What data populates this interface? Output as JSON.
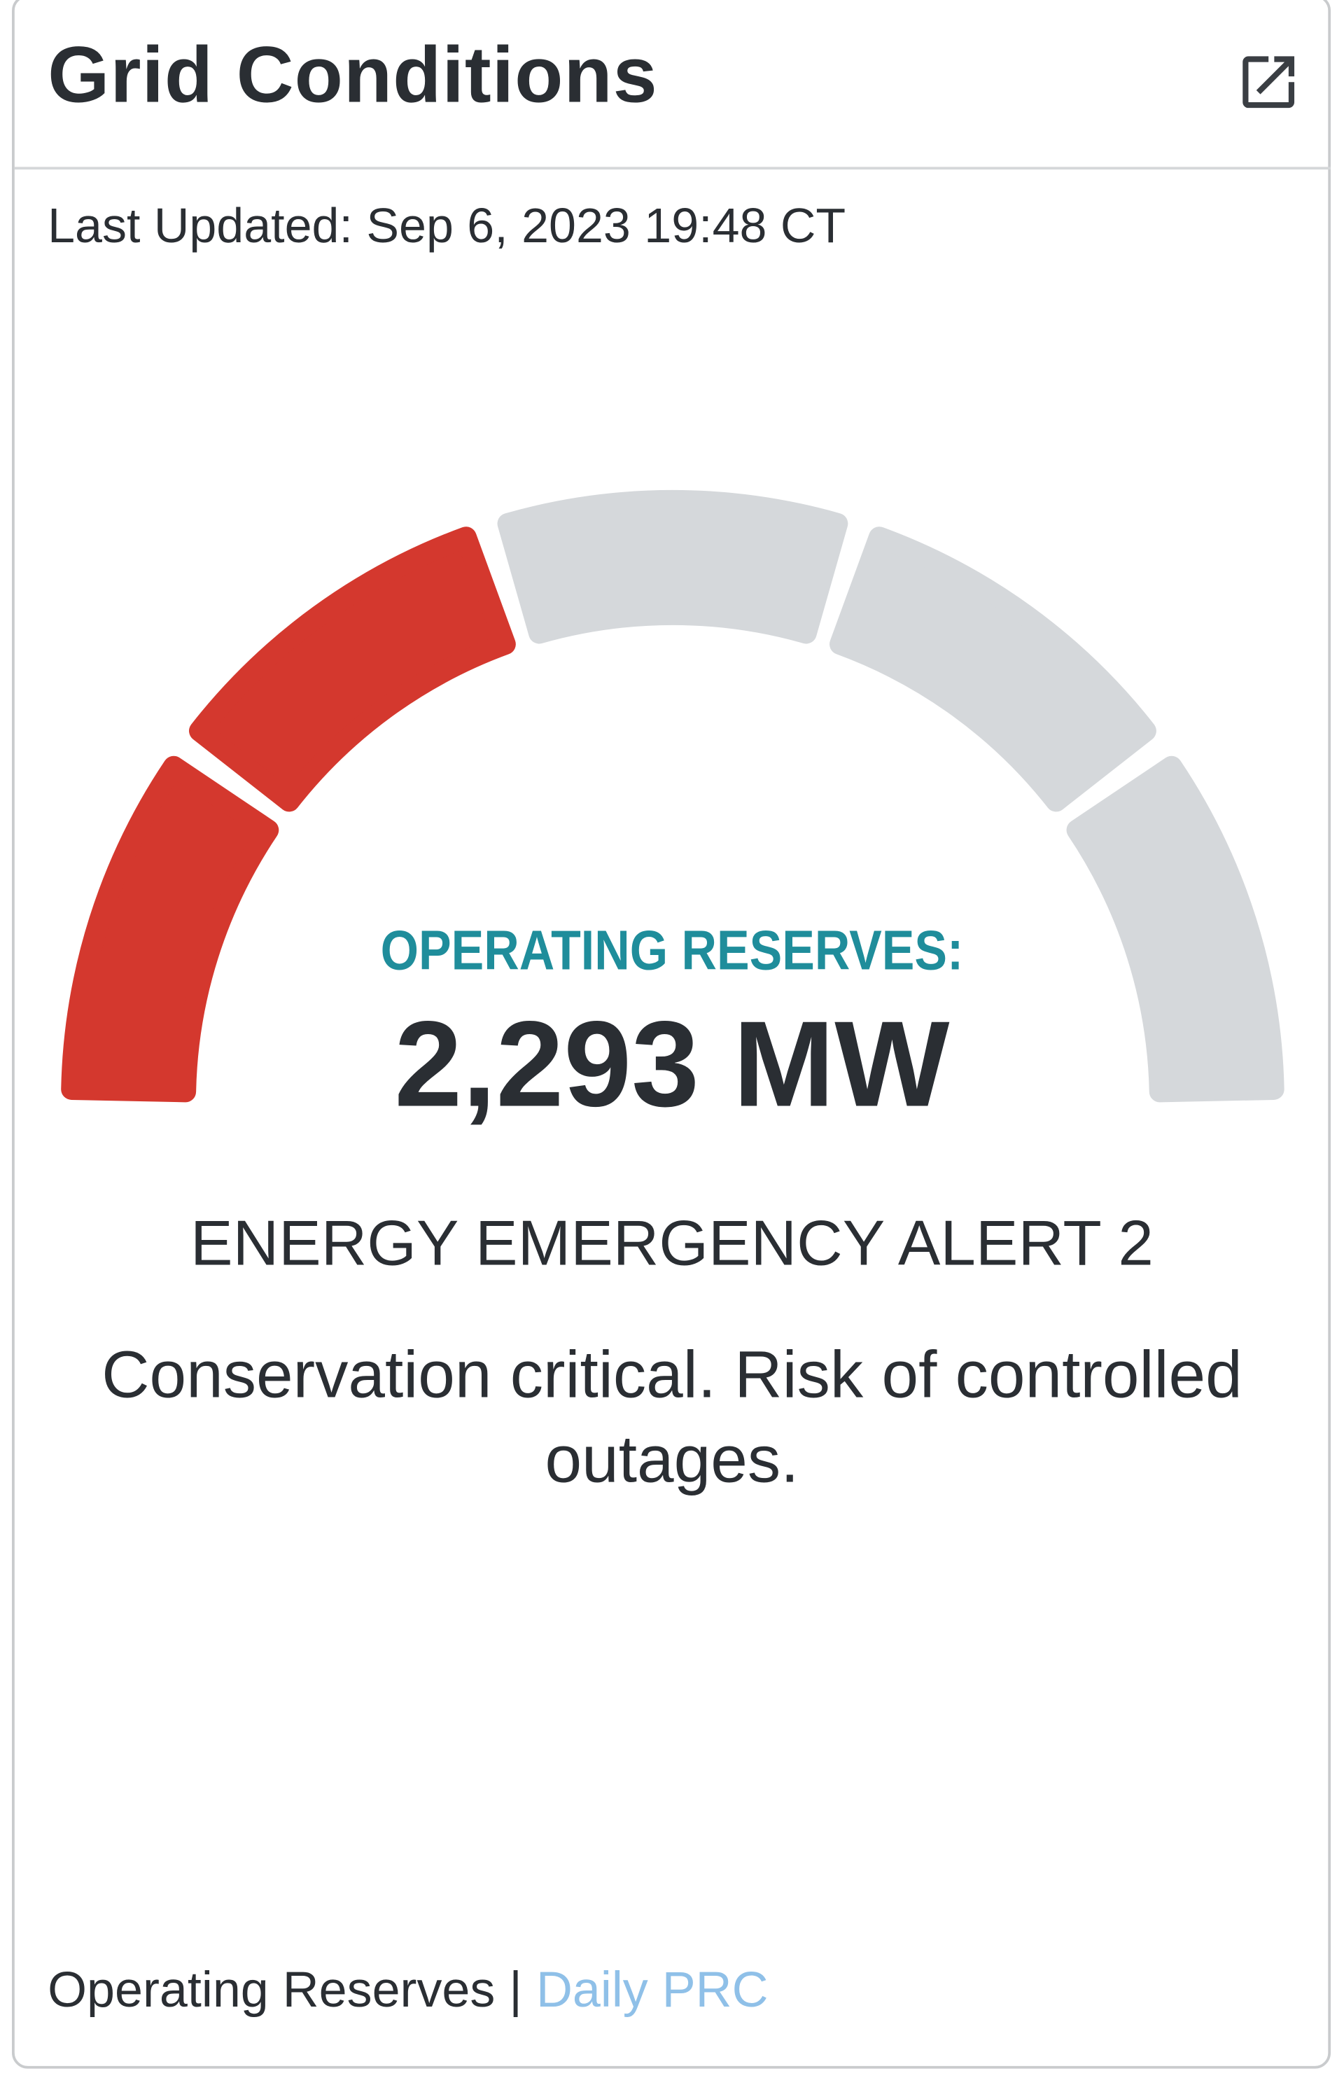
{
  "header": {
    "title": "Grid Conditions",
    "external_link_icon": "external-link-icon"
  },
  "last_updated": "Last Updated: Sep 6, 2023 19:48 CT",
  "gauge": {
    "label": "OPERATING RESERVES:",
    "value": "2,293 MW",
    "segments_total": 5,
    "segments_filled": 2,
    "colors": {
      "filled": "#d4382e",
      "empty": "#d5d8db",
      "label": "#1f8d9b"
    }
  },
  "status": {
    "alert": "ENERGY EMERGENCY ALERT 2",
    "description": "Conservation critical. Risk of controlled outages."
  },
  "footer": {
    "text": "Operating Reserves",
    "separator": " | ",
    "link": "Daily PRC"
  }
}
